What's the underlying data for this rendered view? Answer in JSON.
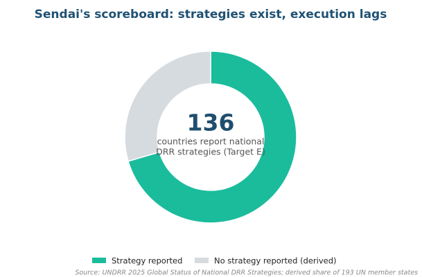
{
  "chart_data": {
    "type": "donut",
    "title": "Sendai's scoreboard: strategies exist, execution lags",
    "categories": [
      "Strategy reported",
      "No strategy reported (derived)"
    ],
    "values": [
      136,
      57
    ],
    "colors": [
      "#1abc9c",
      "#d5dbdf"
    ],
    "center_label": [
      "countries report national",
      "DRR strategies (Target E)"
    ],
    "source": "Source: UNDRR 2025 Global Status of National DRR Strategies; derived share of 193 UN member states",
    "legend": "bottom"
  }
}
